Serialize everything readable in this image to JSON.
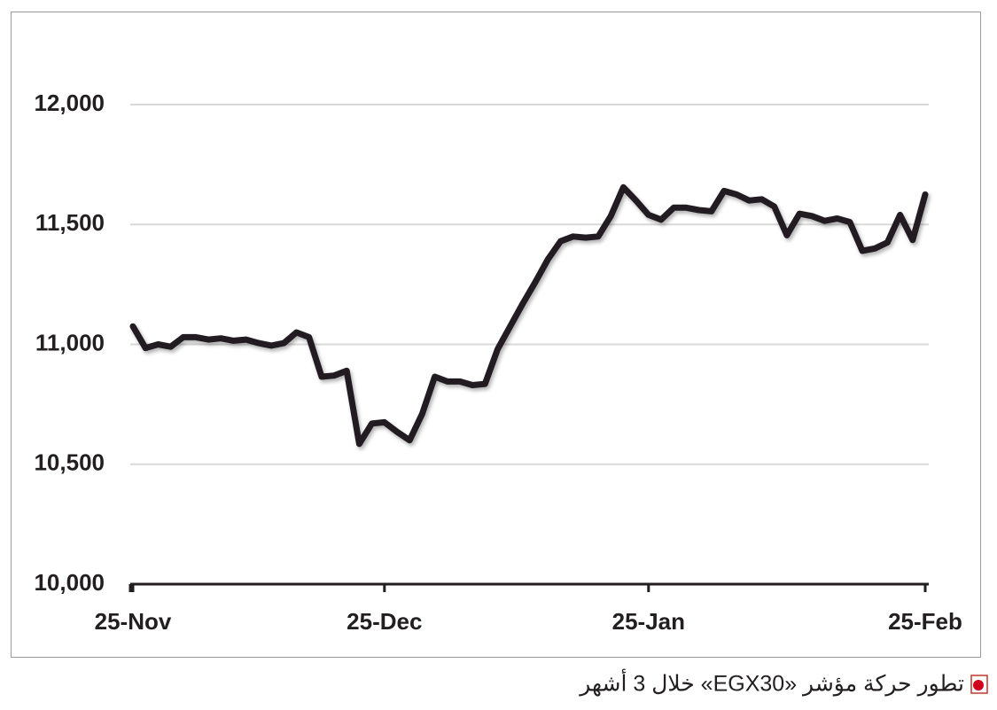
{
  "chart_data": {
    "type": "line",
    "title": "تطور حركة مؤشر «EGX30» خلال 3 أشهر",
    "categories": [
      "25-Nov",
      null,
      null,
      null,
      null,
      null,
      null,
      null,
      null,
      null,
      null,
      null,
      null,
      null,
      null,
      null,
      null,
      null,
      null,
      null,
      "25-Dec",
      null,
      null,
      null,
      null,
      null,
      null,
      null,
      null,
      null,
      null,
      null,
      null,
      null,
      null,
      null,
      null,
      null,
      null,
      null,
      null,
      "25-Jan",
      null,
      null,
      null,
      null,
      null,
      null,
      null,
      null,
      null,
      null,
      null,
      null,
      null,
      null,
      null,
      null,
      null,
      null,
      null,
      null,
      null,
      "25-Feb"
    ],
    "values": [
      11075,
      10985,
      11000,
      10990,
      11030,
      11030,
      11020,
      11025,
      11015,
      11020,
      11005,
      10995,
      11005,
      11050,
      11030,
      10865,
      10870,
      10890,
      10585,
      10670,
      10675,
      10635,
      10600,
      10710,
      10865,
      10845,
      10845,
      10830,
      10835,
      10980,
      11075,
      11170,
      11260,
      11355,
      11430,
      11450,
      11445,
      11450,
      11535,
      11655,
      11600,
      11540,
      11520,
      11570,
      11570,
      11560,
      11555,
      11640,
      11625,
      11600,
      11605,
      11575,
      11455,
      11545,
      11535,
      11515,
      11525,
      11510,
      11390,
      11400,
      11425,
      11540,
      11435,
      11625
    ],
    "color": "#231f20",
    "ylim": [
      10000,
      12000
    ],
    "yticks": [
      {
        "value": 10000,
        "label": "10,000"
      },
      {
        "value": 10500,
        "label": "10,500"
      },
      {
        "value": 11000,
        "label": "11,000"
      },
      {
        "value": 11500,
        "label": "11,500"
      },
      {
        "value": 12000,
        "label": "12,000"
      }
    ],
    "grid": true
  }
}
